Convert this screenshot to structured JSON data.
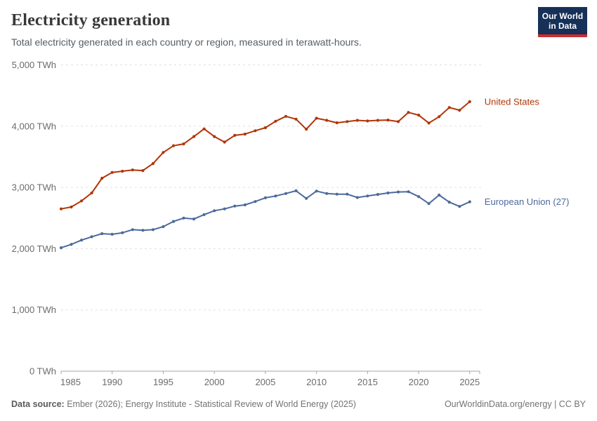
{
  "header": {
    "title": "Electricity generation",
    "subtitle": "Total electricity generated in each country or region, measured in terawatt-hours."
  },
  "logo": {
    "line1": "Our World",
    "line2": "in Data",
    "bg_color": "#163057",
    "bar_color": "#cb2d30"
  },
  "footer": {
    "datasource_label": "Data source:",
    "datasource_text": "Ember (2026); Energy Institute - Statistical Review of World Energy (2025)",
    "link_text": "OurWorldinData.org/energy",
    "separator": "|",
    "license": "CC BY"
  },
  "chart_data": {
    "type": "line",
    "title": "Electricity generation",
    "unit": "TWh",
    "grid": "horizontal-dashed",
    "legend_position": "right-of-line-end",
    "xlabel": "",
    "ylabel": "",
    "ylim": [
      0,
      5000
    ],
    "yticks": [
      0,
      1000,
      2000,
      3000,
      4000,
      5000
    ],
    "ytick_labels": [
      "0 TWh",
      "1,000 TWh",
      "2,000 TWh",
      "3,000 TWh",
      "4,000 TWh",
      "5,000 TWh"
    ],
    "xticks": [
      1985,
      1990,
      1995,
      2000,
      2005,
      2010,
      2015,
      2020,
      2025
    ],
    "x": [
      1985,
      1986,
      1987,
      1988,
      1989,
      1990,
      1991,
      1992,
      1993,
      1994,
      1995,
      1996,
      1997,
      1998,
      1999,
      2000,
      2001,
      2002,
      2003,
      2004,
      2005,
      2006,
      2007,
      2008,
      2009,
      2010,
      2011,
      2012,
      2013,
      2014,
      2015,
      2016,
      2017,
      2018,
      2019,
      2020,
      2021,
      2022,
      2023,
      2024,
      2025
    ],
    "series": [
      {
        "name": "United States",
        "color": "#B13507",
        "values": [
          2650,
          2680,
          2780,
          2910,
          3150,
          3245,
          3265,
          3285,
          3275,
          3390,
          3570,
          3680,
          3710,
          3830,
          3955,
          3830,
          3740,
          3850,
          3870,
          3925,
          3975,
          4080,
          4160,
          4115,
          3950,
          4130,
          4095,
          4055,
          4075,
          4095,
          4085,
          4095,
          4100,
          4075,
          4225,
          4180,
          4050,
          4155,
          4305,
          4260,
          4400
        ]
      },
      {
        "name": "European Union (27)",
        "color": "#4C6A9C",
        "values": [
          2015,
          2070,
          2140,
          2195,
          2245,
          2235,
          2260,
          2310,
          2300,
          2310,
          2360,
          2445,
          2500,
          2485,
          2555,
          2620,
          2650,
          2695,
          2715,
          2770,
          2830,
          2860,
          2900,
          2945,
          2820,
          2940,
          2900,
          2890,
          2890,
          2835,
          2860,
          2885,
          2910,
          2925,
          2930,
          2850,
          2735,
          2875,
          2760,
          2690,
          2765
        ]
      }
    ]
  }
}
